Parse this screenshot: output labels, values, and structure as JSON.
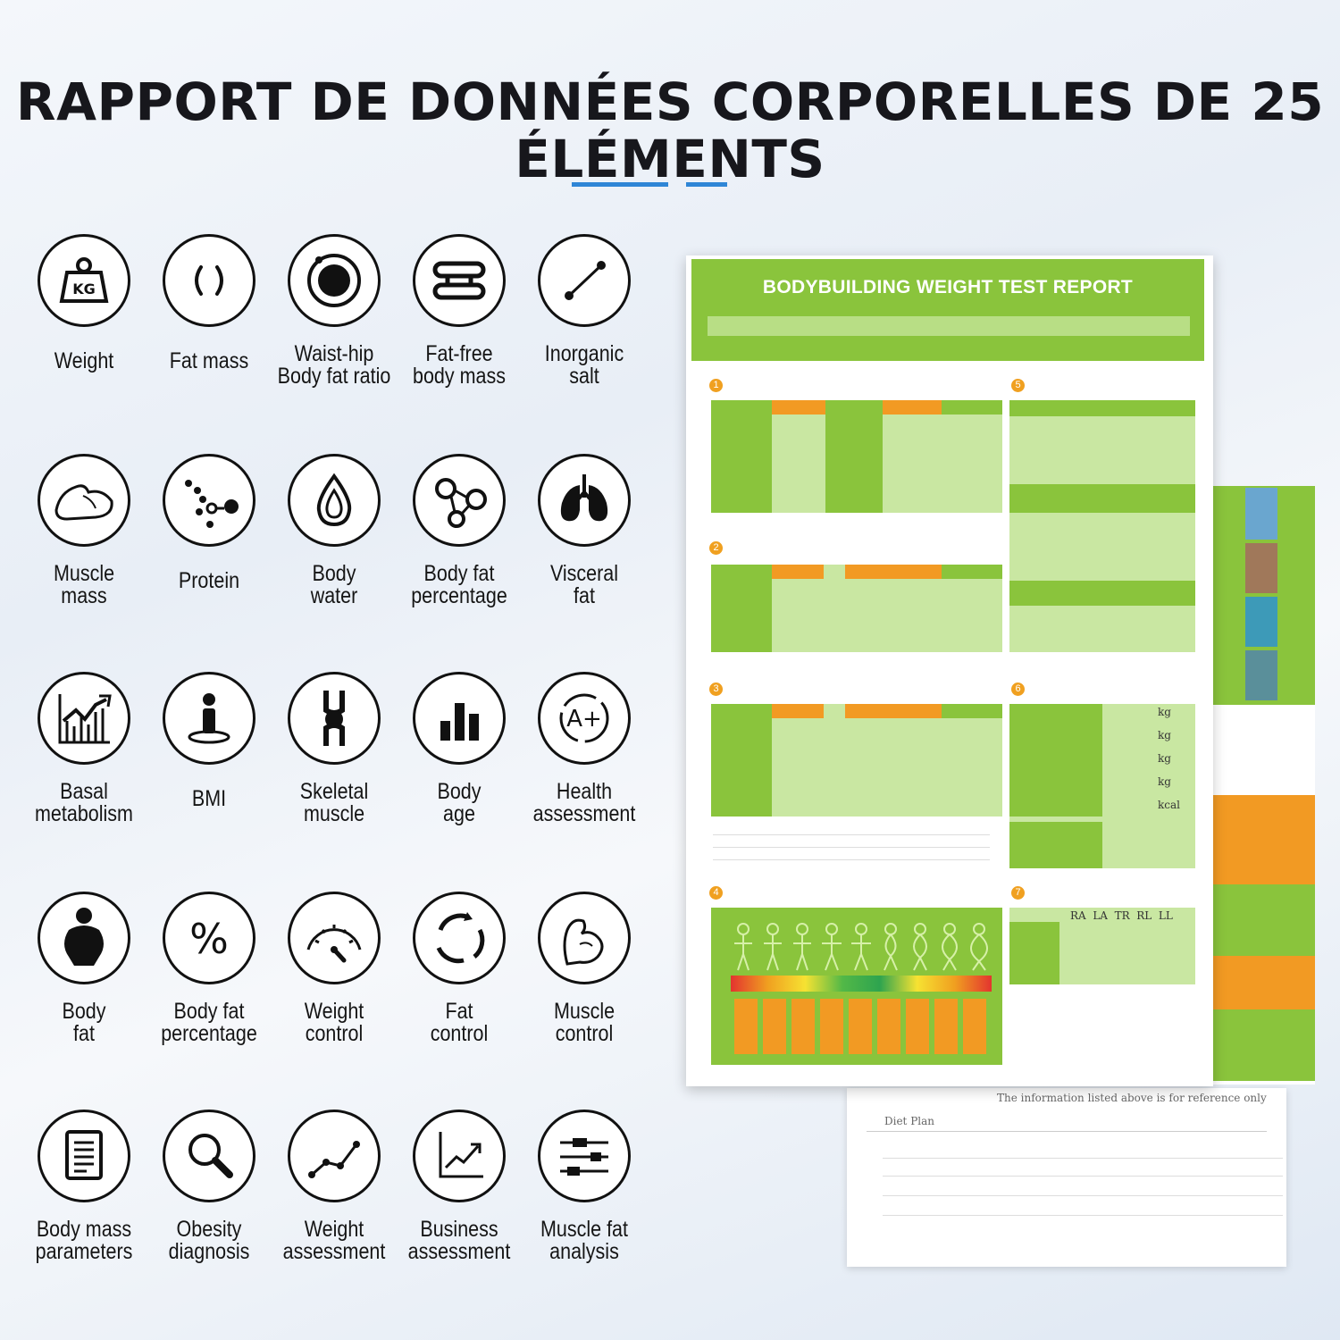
{
  "title": {
    "line1": "RAPPORT DE DONNÉES CORPORELLES DE 25",
    "line2": "ÉLÉMENTS"
  },
  "accent_color": "#2f86d6",
  "report_green": "#8ac43c",
  "report_orange": "#f29a23",
  "items": [
    {
      "icon": "weight-kg-icon",
      "lines": [
        "Weight"
      ]
    },
    {
      "icon": "fat-mass-icon",
      "lines": [
        "Fat mass"
      ]
    },
    {
      "icon": "waist-hip-icon",
      "lines": [
        "Waist-hip",
        "Body fat ratio"
      ]
    },
    {
      "icon": "dumbbell-icon",
      "lines": [
        "Fat-free",
        "body mass"
      ]
    },
    {
      "icon": "molecule-line-icon",
      "lines": [
        "Inorganic",
        "salt"
      ]
    },
    {
      "icon": "muscle-arm-icon",
      "lines": [
        "Muscle",
        "mass"
      ]
    },
    {
      "icon": "protein-dots-icon",
      "lines": [
        "Protein"
      ]
    },
    {
      "icon": "water-drop-icon",
      "lines": [
        "Body",
        "water"
      ]
    },
    {
      "icon": "molecule-icon",
      "lines": [
        "Body fat",
        "percentage"
      ]
    },
    {
      "icon": "lungs-icon",
      "lines": [
        "Visceral",
        "fat"
      ]
    },
    {
      "icon": "growth-chart-icon",
      "lines": [
        "Basal",
        "metabolism"
      ]
    },
    {
      "icon": "person-icon",
      "lines": [
        "BMI"
      ]
    },
    {
      "icon": "bone-joint-icon",
      "lines": [
        "Skeletal",
        "muscle"
      ]
    },
    {
      "icon": "bar-chart-icon",
      "lines": [
        "Body",
        "age"
      ]
    },
    {
      "icon": "a-plus-icon",
      "lines": [
        "Health",
        "assessment"
      ]
    },
    {
      "icon": "body-silhouette-icon",
      "lines": [
        "Body",
        "fat"
      ]
    },
    {
      "icon": "percent-icon",
      "lines": [
        "Body fat",
        "percentage"
      ]
    },
    {
      "icon": "gauge-icon",
      "lines": [
        "Weight",
        "control"
      ]
    },
    {
      "icon": "cycle-arrows-icon",
      "lines": [
        "Fat",
        "control"
      ]
    },
    {
      "icon": "flex-arm-icon",
      "lines": [
        "Muscle",
        "control"
      ]
    },
    {
      "icon": "document-list-icon",
      "lines": [
        "Body mass",
        "parameters"
      ]
    },
    {
      "icon": "magnifier-icon",
      "lines": [
        "Obesity",
        "diagnosis"
      ]
    },
    {
      "icon": "line-graph-icon",
      "lines": [
        "Weight",
        "assessment"
      ]
    },
    {
      "icon": "trend-chart-icon",
      "lines": [
        "Business",
        "assessment"
      ]
    },
    {
      "icon": "sliders-icon",
      "lines": [
        "Muscle fat",
        "analysis"
      ]
    }
  ],
  "report": {
    "title": "BODYBUILDING WEIGHT TEST REPORT",
    "bioelectrical_cols": "RA  LA  TR  RL  LL",
    "weight_units": [
      "kg",
      "kg",
      "kg",
      "kg",
      "kcal"
    ],
    "footer_note": "The information listed above is for reference only",
    "diet_plan": "Diet Plan"
  }
}
